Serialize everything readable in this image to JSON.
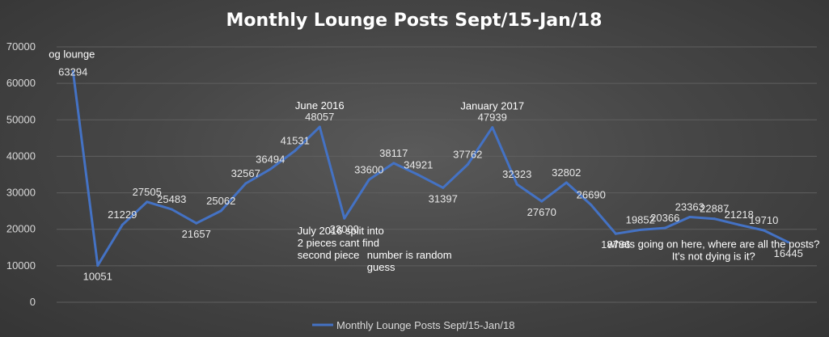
{
  "chart_data": {
    "type": "line",
    "title": "Monthly Lounge Posts Sept/15-Jan/18",
    "ylim": [
      0,
      70000
    ],
    "yticks": [
      0,
      10000,
      20000,
      30000,
      40000,
      50000,
      60000,
      70000
    ],
    "grid": true,
    "legend_position": "bottom",
    "series": [
      {
        "name": "Monthly Lounge Posts Sept/15-Jan/18",
        "color": "#4472c4",
        "values": [
          63294,
          10051,
          21229,
          27505,
          25483,
          21657,
          25062,
          32567,
          36494,
          41531,
          48057,
          23000,
          33600,
          38117,
          34921,
          31397,
          37762,
          47939,
          32323,
          27670,
          32802,
          26690,
          18786,
          19852,
          20366,
          23363,
          22887,
          21218,
          19710,
          16445
        ]
      }
    ],
    "annotations": [
      {
        "point_index": 0,
        "lines": [
          "og lounge"
        ]
      },
      {
        "point_index": 10,
        "lines": [
          "June 2016"
        ]
      },
      {
        "point_index": 17,
        "lines": [
          "January 2017"
        ]
      },
      {
        "point_index": 11,
        "lines": [
          "July 2016 split into",
          "2 pieces cant find",
          "second piece"
        ]
      },
      {
        "point_index": 11,
        "lines": [
          "number is random",
          "guess"
        ]
      },
      {
        "point_index": 26,
        "lines": [
          "whats going on here, where are all the posts?",
          "It's not dying is it?"
        ]
      }
    ]
  }
}
